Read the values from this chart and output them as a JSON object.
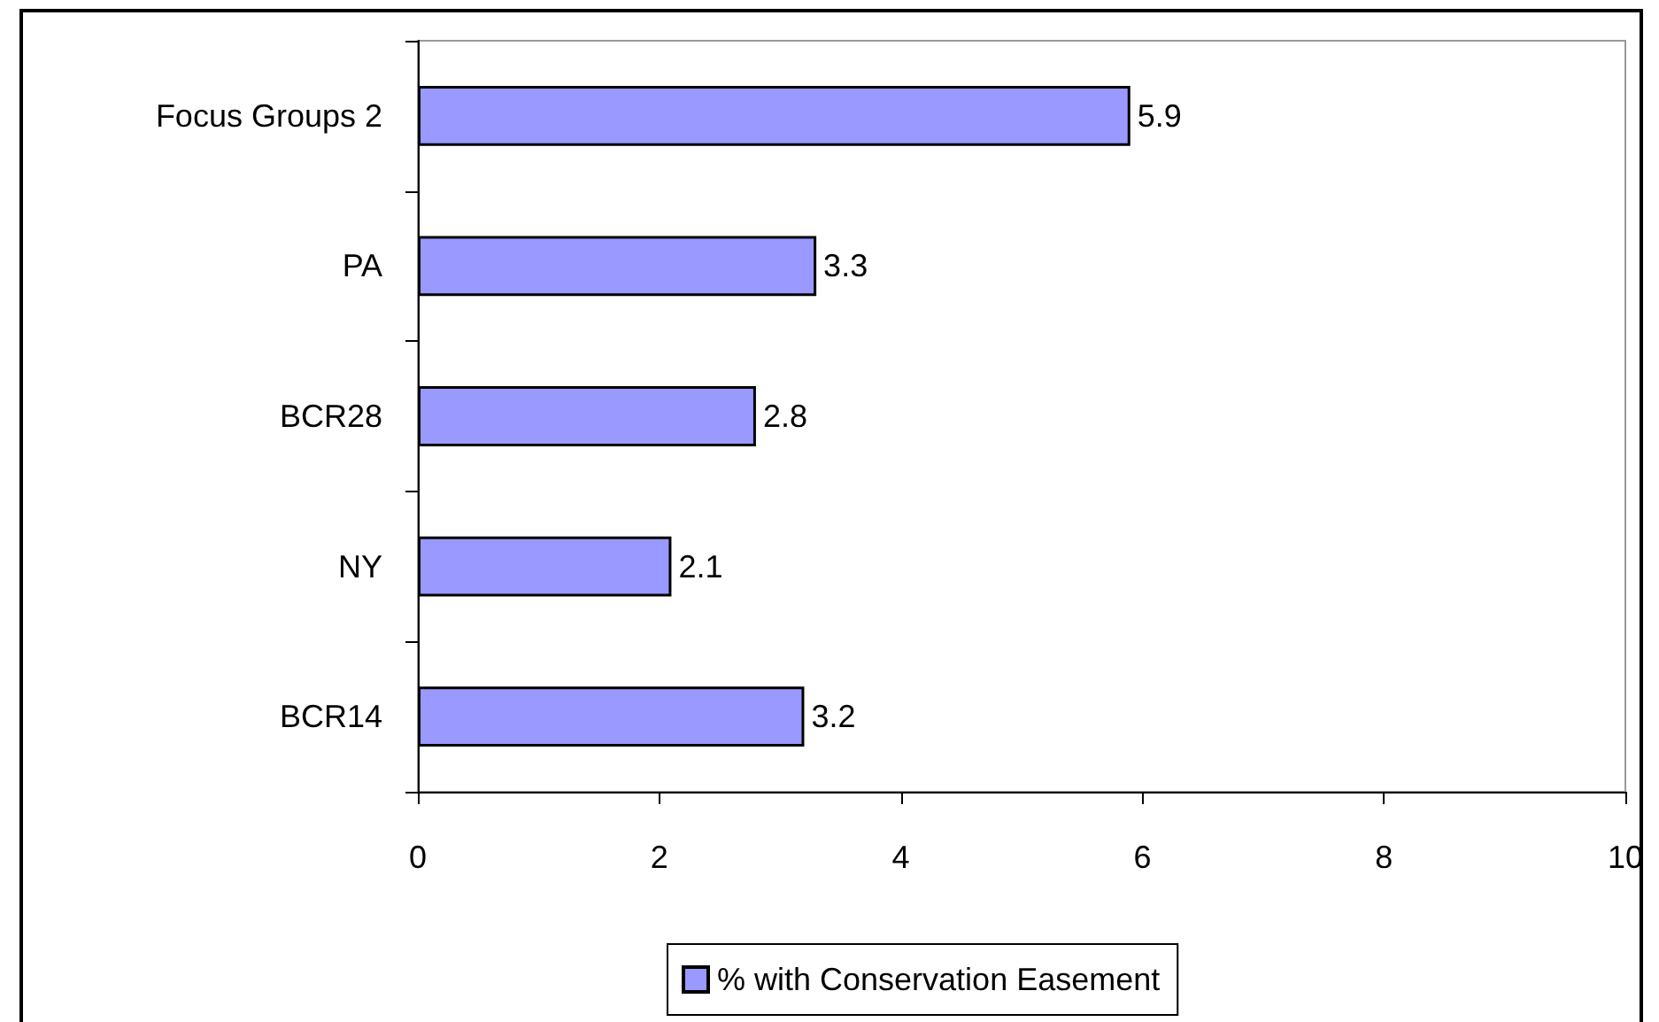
{
  "chart_data": {
    "type": "bar",
    "orientation": "horizontal",
    "categories": [
      "Focus Groups 2",
      "PA",
      "BCR28",
      "NY",
      "BCR14"
    ],
    "series": [
      {
        "name": "% with Conservation Easement",
        "color": "#9999ff",
        "values": [
          5.9,
          3.3,
          2.8,
          2.1,
          3.2
        ]
      }
    ],
    "xlim": [
      0,
      10
    ],
    "xticks": [
      0,
      2,
      4,
      6,
      8,
      10
    ],
    "data_labels": true,
    "legend": "bottom",
    "grid": false
  }
}
